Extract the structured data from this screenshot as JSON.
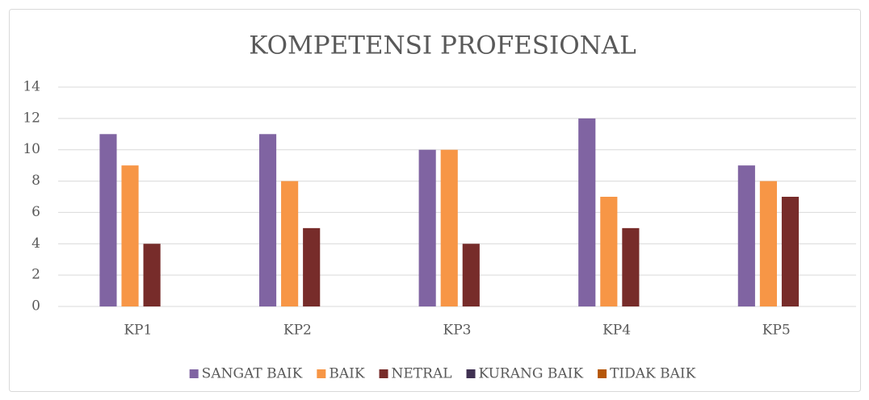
{
  "chart_data": {
    "type": "bar",
    "title": "KOMPETENSI PROFESIONAL",
    "categories": [
      "KP1",
      "KP2",
      "KP3",
      "KP4",
      "KP5"
    ],
    "series": [
      {
        "name": "SANGAT BAIK",
        "color": "#8064a2",
        "values": [
          11,
          11,
          10,
          12,
          9
        ]
      },
      {
        "name": "BAIK",
        "color": "#f79646",
        "values": [
          9,
          8,
          10,
          7,
          8
        ]
      },
      {
        "name": "NETRAL",
        "color": "#772c2a",
        "values": [
          4,
          5,
          4,
          5,
          7
        ]
      },
      {
        "name": "KURANG BAIK",
        "color": "#403152",
        "values": [
          0,
          0,
          0,
          0,
          0
        ]
      },
      {
        "name": "TIDAK BAIK",
        "color": "#b65708",
        "values": [
          0,
          0,
          0,
          0,
          0
        ]
      }
    ],
    "ylim": [
      0,
      14
    ],
    "yticks": [
      0,
      2,
      4,
      6,
      8,
      10,
      12,
      14
    ],
    "grid": true,
    "legend": "bottom"
  }
}
